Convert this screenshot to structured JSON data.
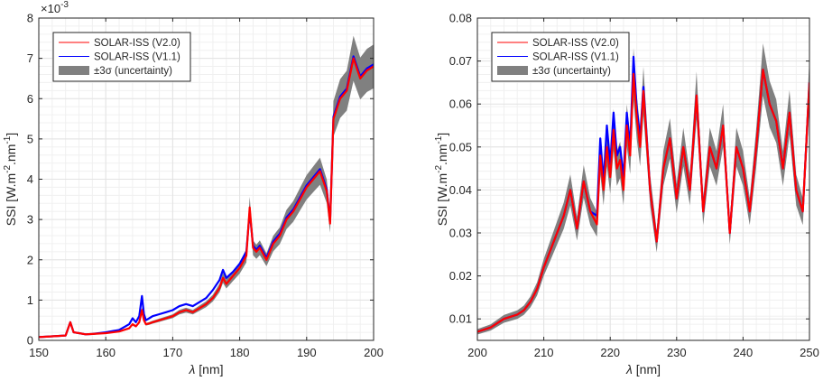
{
  "colors": {
    "v20": "#ff0000",
    "v11": "#0000ff",
    "band": "#808080",
    "grid": "#e3e3e3",
    "axis": "#262626"
  },
  "chart_data": [
    {
      "type": "line",
      "xlabel": "λ [nm]",
      "ylabel": "SSI [W.m-2.nm-1]",
      "ylabel_parts": {
        "base": "SSI [W.m",
        "exp1": "-2",
        "mid": ".nm",
        "exp2": "-1",
        "end": "]"
      },
      "y_multiplier": "×10-3",
      "y_multiplier_parts": {
        "base": "×10",
        "exp": "-3"
      },
      "xlim": [
        150,
        200
      ],
      "ylim": [
        0,
        8
      ],
      "grid": true,
      "legend_position": "top-left",
      "xticks": [
        "150",
        "160",
        "170",
        "180",
        "190",
        "200"
      ],
      "yticks": [
        "0",
        "1",
        "2",
        "3",
        "4",
        "5",
        "6",
        "7",
        "8"
      ],
      "x": [
        150,
        152,
        154,
        154.7,
        155.2,
        156,
        157,
        158,
        160,
        162,
        163.5,
        164,
        164.5,
        165,
        165.4,
        165.7,
        166,
        166.5,
        167,
        168,
        169,
        170,
        171,
        172,
        173,
        174,
        175,
        176,
        177,
        177.5,
        178,
        179,
        180,
        181,
        181.5,
        182,
        182.5,
        183,
        184,
        185,
        186,
        187,
        188,
        189,
        190,
        191,
        192,
        193,
        193.5,
        194,
        195,
        196,
        197,
        198,
        199,
        200
      ],
      "series": [
        {
          "name": "SOLAR-ISS (V2.0)",
          "color": "#ff0000",
          "values": [
            0.08,
            0.1,
            0.12,
            0.45,
            0.2,
            0.18,
            0.15,
            0.16,
            0.18,
            0.22,
            0.3,
            0.4,
            0.35,
            0.45,
            0.75,
            0.5,
            0.4,
            0.42,
            0.45,
            0.5,
            0.55,
            0.6,
            0.7,
            0.75,
            0.7,
            0.8,
            0.9,
            1.05,
            1.3,
            1.55,
            1.4,
            1.6,
            1.8,
            2.1,
            3.3,
            2.3,
            2.2,
            2.3,
            2.0,
            2.4,
            2.6,
            3.0,
            3.2,
            3.5,
            3.8,
            4.0,
            4.2,
            3.7,
            2.9,
            5.5,
            6.0,
            6.2,
            7.0,
            6.5,
            6.7,
            6.8
          ]
        },
        {
          "name": "SOLAR-ISS (V1.1)",
          "color": "#0000ff",
          "values": [
            0.08,
            0.1,
            0.12,
            0.45,
            0.2,
            0.18,
            0.15,
            0.16,
            0.2,
            0.26,
            0.4,
            0.55,
            0.45,
            0.6,
            1.1,
            0.65,
            0.5,
            0.55,
            0.6,
            0.65,
            0.7,
            0.75,
            0.85,
            0.9,
            0.85,
            0.95,
            1.05,
            1.25,
            1.5,
            1.75,
            1.55,
            1.7,
            1.9,
            2.2,
            3.2,
            2.35,
            2.25,
            2.35,
            2.05,
            2.45,
            2.65,
            3.05,
            3.25,
            3.55,
            3.85,
            4.05,
            4.25,
            3.75,
            2.95,
            5.55,
            6.05,
            6.25,
            7.05,
            6.55,
            6.75,
            6.85
          ]
        }
      ],
      "uncertainty_label": "±3σ (uncertainty)",
      "uncertainty_relative": 0.08
    },
    {
      "type": "line",
      "xlabel": "λ [nm]",
      "ylabel": "SSI [W.m-2.nm-1]",
      "ylabel_parts": {
        "base": "SSI [W.m",
        "exp1": "-2",
        "mid": ".nm",
        "exp2": "-1",
        "end": "]"
      },
      "xlim": [
        200,
        250
      ],
      "ylim": [
        0.005,
        0.08
      ],
      "grid": true,
      "legend_position": "top-left",
      "xticks": [
        "200",
        "210",
        "220",
        "230",
        "240",
        "250"
      ],
      "yticks": [
        "0.01",
        "0.02",
        "0.03",
        "0.04",
        "0.05",
        "0.06",
        "0.07",
        "0.08"
      ],
      "x": [
        200,
        202,
        204,
        206,
        207,
        208,
        209,
        210,
        211,
        212,
        213,
        214,
        215,
        216,
        217,
        218,
        218.5,
        219,
        219.5,
        220,
        220.5,
        221,
        221.5,
        222,
        222.5,
        223,
        223.5,
        224,
        224.5,
        225,
        226,
        227,
        228,
        229,
        230,
        231,
        232,
        233,
        234,
        235,
        236,
        237,
        238,
        239,
        240,
        241,
        242,
        243,
        244,
        245,
        246,
        247,
        248,
        249,
        250
      ],
      "series": [
        {
          "name": "SOLAR-ISS (V2.0)",
          "color": "#ff0000",
          "values": [
            0.007,
            0.008,
            0.01,
            0.011,
            0.012,
            0.014,
            0.017,
            0.022,
            0.026,
            0.03,
            0.034,
            0.04,
            0.031,
            0.042,
            0.035,
            0.032,
            0.048,
            0.04,
            0.05,
            0.043,
            0.054,
            0.045,
            0.047,
            0.04,
            0.055,
            0.048,
            0.067,
            0.057,
            0.05,
            0.063,
            0.04,
            0.028,
            0.045,
            0.052,
            0.038,
            0.05,
            0.04,
            0.062,
            0.035,
            0.05,
            0.045,
            0.055,
            0.03,
            0.05,
            0.045,
            0.035,
            0.05,
            0.068,
            0.06,
            0.056,
            0.045,
            0.058,
            0.04,
            0.035,
            0.065
          ]
        },
        {
          "name": "SOLAR-ISS (V1.1)",
          "color": "#0000ff",
          "values": [
            0.007,
            0.008,
            0.01,
            0.011,
            0.012,
            0.014,
            0.017,
            0.022,
            0.026,
            0.03,
            0.034,
            0.04,
            0.031,
            0.042,
            0.035,
            0.034,
            0.052,
            0.042,
            0.055,
            0.046,
            0.058,
            0.048,
            0.05,
            0.043,
            0.058,
            0.05,
            0.071,
            0.059,
            0.052,
            0.064,
            0.04,
            0.028,
            0.045,
            0.052,
            0.038,
            0.05,
            0.04,
            0.062,
            0.035,
            0.05,
            0.045,
            0.055,
            0.03,
            0.05,
            0.045,
            0.035,
            0.05,
            0.068,
            0.06,
            0.056,
            0.045,
            0.058,
            0.04,
            0.035,
            0.065
          ]
        }
      ],
      "uncertainty_label": "±3σ (uncertainty)",
      "uncertainty_relative": 0.09
    }
  ]
}
